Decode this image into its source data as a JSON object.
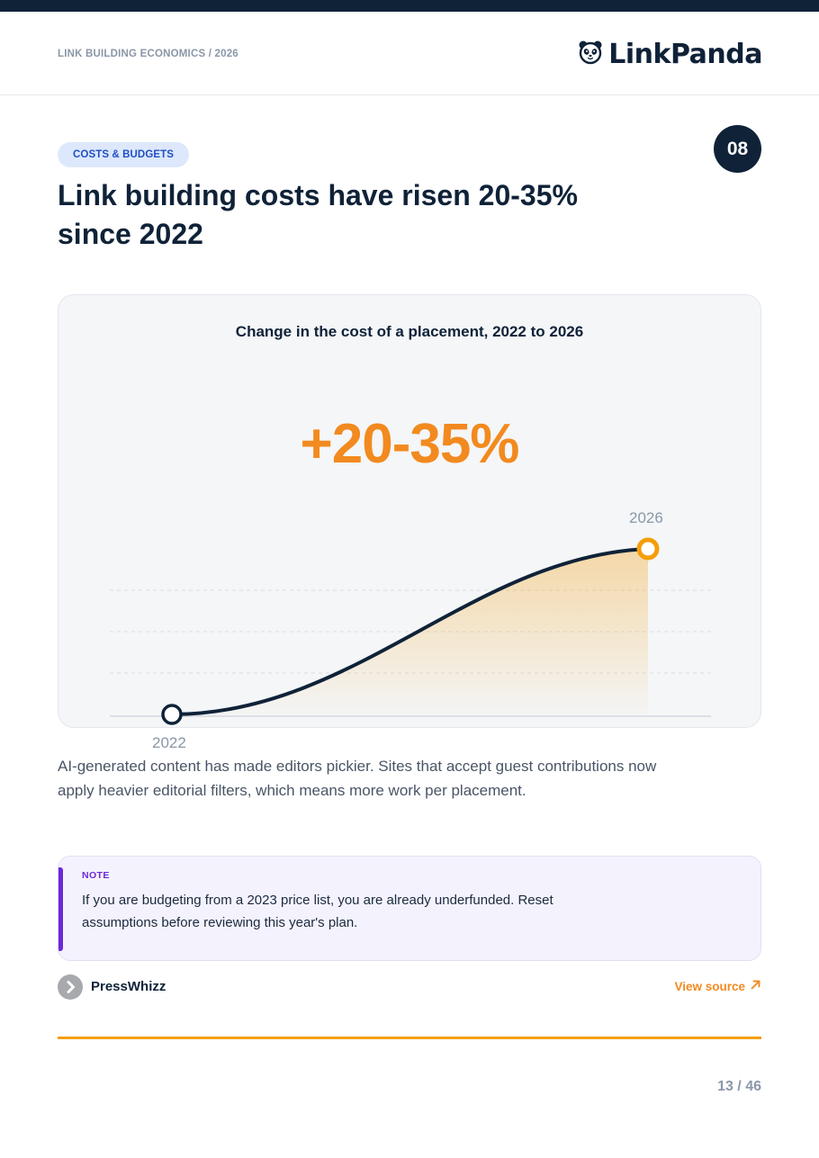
{
  "header": {
    "kicker": "LINK BUILDING ECONOMICS / 2026",
    "brand": "LinkPanda",
    "logo_icon": "panda-icon"
  },
  "section": {
    "tag": "COSTS & BUDGETS",
    "number": "08",
    "title": "Link building costs have risen 20-35% since 2022"
  },
  "chart_data": {
    "type": "area",
    "title": "Change in the cost of a placement, 2022 to 2026",
    "headline": "+20-35%",
    "x_labels": [
      "2022",
      "2026"
    ],
    "colors": {
      "line": "#0f2238",
      "fill": "#f5a623",
      "end_marker": "#f59e0b",
      "headline": "#f28a1f"
    }
  },
  "body": "AI-generated content has made editors pickier. Sites that accept guest contributions now apply heavier editorial filters, which means more work per placement.",
  "note": {
    "label": "NOTE",
    "text": "If you are budgeting from a 2023 price list, you are already underfunded. Reset assumptions before reviewing this year's plan."
  },
  "source": {
    "name": "PressWhizz",
    "link_label": "View source",
    "icon": "chevron-right-icon",
    "link_icon": "arrow-up-right-icon"
  },
  "footer": {
    "page": "13 / 46"
  },
  "colors": {
    "navy": "#0f2238",
    "orange": "#f28a1f",
    "purple": "#6d28d9",
    "blue": "#1f4fc4"
  }
}
